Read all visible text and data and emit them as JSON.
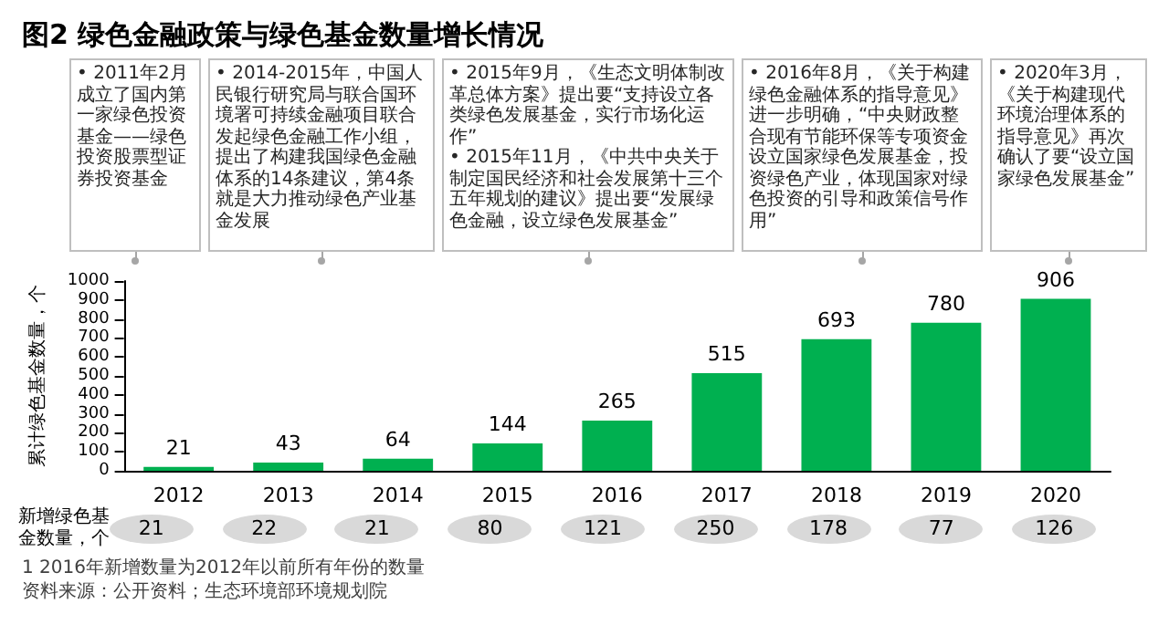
{
  "chart_data": [
    {
      "type": "bar",
      "title": "图2 绿色金融政策与绿色基金数量增长情况",
      "ylabel": "累计绿色基金数量，个",
      "categories": [
        "2012",
        "2013",
        "2014",
        "2015",
        "2016",
        "2017",
        "2018",
        "2019",
        "2020"
      ],
      "series": [
        {
          "color": "#00b050",
          "values": [
            21,
            43,
            64,
            144,
            265,
            515,
            693,
            780,
            906
          ]
        }
      ],
      "ylim": [
        0,
        1000
      ],
      "yticks": [
        0,
        100,
        200,
        300,
        400,
        500,
        600,
        700,
        800,
        900,
        1000
      ],
      "data_labels": true,
      "annotations": [
        "• 2011年2月成立了国内第一家绿色投资基金——绿色投资股票型证券投资基金",
        "• 2014-2015年，中国人民银行研究局与联合国环境署可持续金融项目联合发起绿色金融工作小组，提出了构建我国绿色金融体系的14条建议，第4条就是大力推动绿色产业基金发展",
        "• 2015年9月，《生态文明体制改革总体方案》提出要“支持设立各类绿色发展基金，实行市场化运作”",
        "• 2015年11月，《中共中央关于制定国民经济和社会发展第十三个五年规划的建议》提出要“发展绿色金融，设立绿色发展基金”",
        "• 2016年8月，《关于构建绿色金融体系的指导意见》进一步明确，“中央财政整合现有节能环保等专项资金设立国家绿色发展基金，投资绿色产业，体现国家对绿色投资的引导和政策信号作用”",
        "• 2020年3月，《关于构建现代环境治理体系的指导意见》再次确认了要“设立国家绿色发展基金”",
        "1 2016年新增数量为2012年以前所有年份的数量",
        "资料来源：公开资料；生态环境部环境规划院"
      ]
    },
    {
      "type": "other",
      "ylabel": "新增绿色基金数量，个",
      "color": "#d9d9d9",
      "data_labels": true,
      "values": [
        21,
        22,
        21,
        80,
        121,
        250,
        178,
        77,
        126
      ]
    }
  ]
}
